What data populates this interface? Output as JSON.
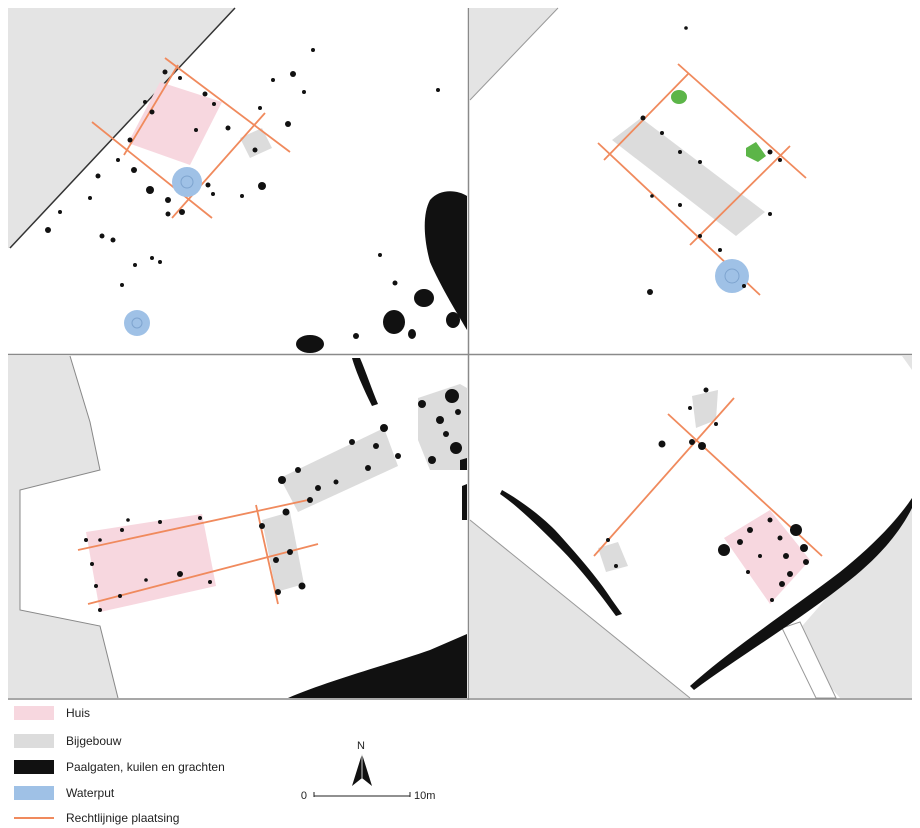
{
  "legend": {
    "items": [
      {
        "label": "Huis",
        "color": "#f7d7df"
      },
      {
        "label": "Bijgebouw",
        "color": "#dcdcdc"
      },
      {
        "label": "Paalgaten, kuilen en grachten",
        "color": "#111111"
      },
      {
        "label": "Waterput",
        "color": "#9fc1e6"
      },
      {
        "label": "Rechtlijnige plaatsing",
        "color": "#f08a5d"
      }
    ]
  },
  "scale_bar": {
    "start_label": "0",
    "end_label": "10m"
  },
  "north_arrow": {
    "label": "N"
  },
  "colors": {
    "background_area": "#e4e4e4",
    "excavation_area": "#ffffff",
    "panel_border": "#8a8a8a",
    "green_feature": "#5cb548"
  }
}
